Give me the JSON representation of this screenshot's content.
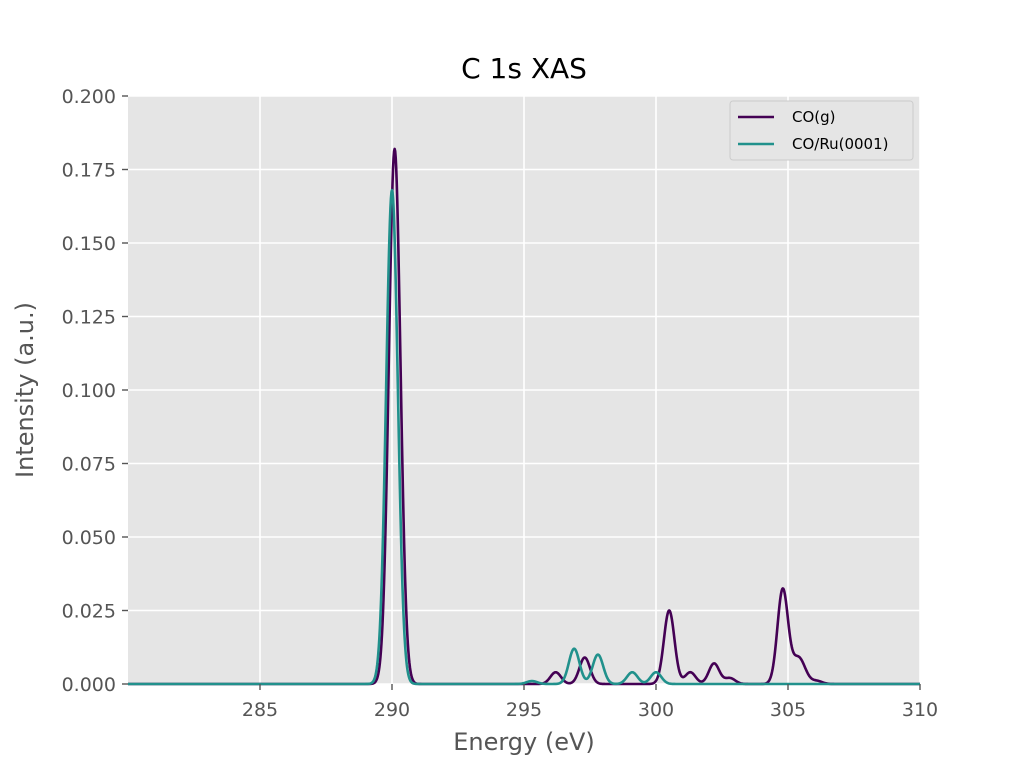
{
  "chart_data": {
    "type": "line",
    "title": "C 1s XAS",
    "xlabel": "Energy (eV)",
    "ylabel": "Intensity (a.u.)",
    "xlim": [
      280,
      310
    ],
    "ylim": [
      0,
      0.2
    ],
    "x_ticks": [
      285,
      290,
      295,
      300,
      305,
      310
    ],
    "x_tick_labels": [
      "285",
      "290",
      "295",
      "300",
      "305",
      "310"
    ],
    "y_ticks": [
      0,
      0.025,
      0.05,
      0.075,
      0.1,
      0.125,
      0.15,
      0.175,
      0.2
    ],
    "y_tick_labels": [
      "0.000",
      "0.025",
      "0.050",
      "0.075",
      "0.100",
      "0.125",
      "0.150",
      "0.175",
      "0.200"
    ],
    "grid": true,
    "legend_position": "top-right",
    "series": [
      {
        "name": "CO(g)",
        "color": "#440154",
        "peaks": [
          {
            "x": 290.1,
            "y": 0.182,
            "width": 0.22
          },
          {
            "x": 296.2,
            "y": 0.004,
            "width": 0.2
          },
          {
            "x": 297.3,
            "y": 0.009,
            "width": 0.2
          },
          {
            "x": 300.5,
            "y": 0.025,
            "width": 0.2
          },
          {
            "x": 301.3,
            "y": 0.004,
            "width": 0.2
          },
          {
            "x": 302.2,
            "y": 0.007,
            "width": 0.2
          },
          {
            "x": 302.8,
            "y": 0.002,
            "width": 0.2
          },
          {
            "x": 304.8,
            "y": 0.032,
            "width": 0.2
          },
          {
            "x": 305.4,
            "y": 0.009,
            "width": 0.25
          },
          {
            "x": 306.1,
            "y": 0.001,
            "width": 0.2
          }
        ]
      },
      {
        "name": "CO/Ru(0001)",
        "color": "#21918c",
        "peaks": [
          {
            "x": 290.0,
            "y": 0.168,
            "width": 0.22
          },
          {
            "x": 295.3,
            "y": 0.001,
            "width": 0.2
          },
          {
            "x": 296.9,
            "y": 0.012,
            "width": 0.2
          },
          {
            "x": 297.8,
            "y": 0.01,
            "width": 0.2
          },
          {
            "x": 299.1,
            "y": 0.004,
            "width": 0.2
          },
          {
            "x": 300.0,
            "y": 0.004,
            "width": 0.2
          }
        ]
      }
    ]
  }
}
